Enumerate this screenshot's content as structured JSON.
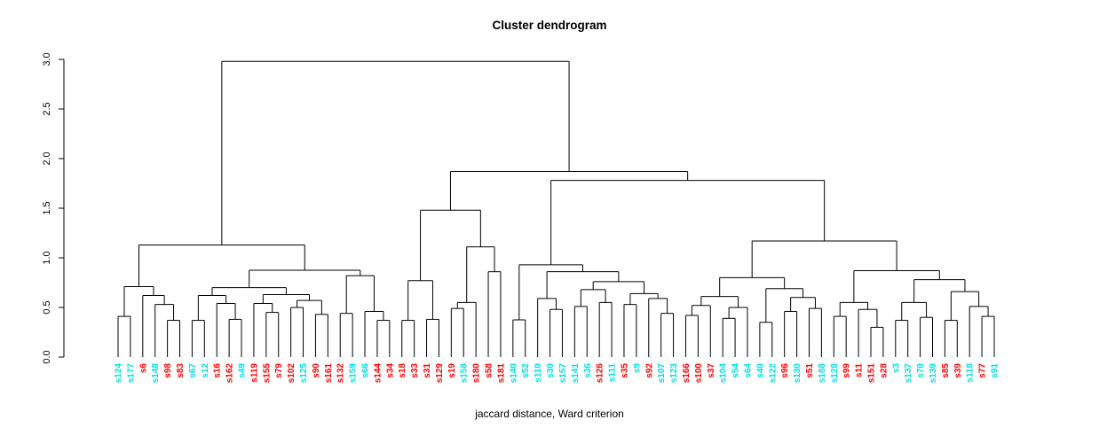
{
  "chart_data": {
    "type": "dendrogram",
    "title": "Cluster dendrogram",
    "xlabel": "jaccard distance, Ward criterion",
    "ylabel": "",
    "ylim": [
      0,
      3
    ],
    "yticks": [
      "0.0",
      "0.5",
      "1.0",
      "1.5",
      "2.0",
      "2.5",
      "3.0"
    ],
    "grid": false,
    "legend": "none",
    "colors": {
      "cyan": "#00DFE4",
      "red": "#FF0000",
      "line": "#000000",
      "axis": "#000000"
    },
    "leaves": [
      [
        "s124",
        "cyan"
      ],
      [
        "s177",
        "cyan"
      ],
      [
        "s6",
        "red"
      ],
      [
        "s148",
        "cyan"
      ],
      [
        "s98",
        "red"
      ],
      [
        "s83",
        "red"
      ],
      [
        "s67",
        "cyan"
      ],
      [
        "s12",
        "cyan"
      ],
      [
        "s16",
        "red"
      ],
      [
        "s162",
        "red"
      ],
      [
        "s49",
        "cyan"
      ],
      [
        "s119",
        "red"
      ],
      [
        "s155",
        "red"
      ],
      [
        "s79",
        "red"
      ],
      [
        "s102",
        "red"
      ],
      [
        "s125",
        "cyan"
      ],
      [
        "s90",
        "red"
      ],
      [
        "s161",
        "red"
      ],
      [
        "s132",
        "red"
      ],
      [
        "s159",
        "cyan"
      ],
      [
        "s66",
        "cyan"
      ],
      [
        "s144",
        "red"
      ],
      [
        "s34",
        "red"
      ],
      [
        "s18",
        "red"
      ],
      [
        "s33",
        "red"
      ],
      [
        "s31",
        "red"
      ],
      [
        "s129",
        "red"
      ],
      [
        "s19",
        "red"
      ],
      [
        "s158",
        "cyan"
      ],
      [
        "s180",
        "red"
      ],
      [
        "s58",
        "red"
      ],
      [
        "s181",
        "red"
      ],
      [
        "s140",
        "cyan"
      ],
      [
        "s52",
        "cyan"
      ],
      [
        "s110",
        "cyan"
      ],
      [
        "s30",
        "cyan"
      ],
      [
        "s157",
        "cyan"
      ],
      [
        "s141",
        "cyan"
      ],
      [
        "s36",
        "cyan"
      ],
      [
        "s126",
        "red"
      ],
      [
        "s111",
        "cyan"
      ],
      [
        "s35",
        "red"
      ],
      [
        "s9",
        "cyan"
      ],
      [
        "s92",
        "red"
      ],
      [
        "s107",
        "cyan"
      ],
      [
        "s123",
        "cyan"
      ],
      [
        "s166",
        "red"
      ],
      [
        "s100",
        "red"
      ],
      [
        "s37",
        "red"
      ],
      [
        "s104",
        "cyan"
      ],
      [
        "s54",
        "cyan"
      ],
      [
        "s64",
        "cyan"
      ],
      [
        "s40",
        "cyan"
      ],
      [
        "s122",
        "cyan"
      ],
      [
        "s96",
        "red"
      ],
      [
        "s130",
        "cyan"
      ],
      [
        "s51",
        "red"
      ],
      [
        "s188",
        "cyan"
      ],
      [
        "s128",
        "cyan"
      ],
      [
        "s99",
        "red"
      ],
      [
        "s11",
        "red"
      ],
      [
        "s151",
        "red"
      ],
      [
        "s28",
        "red"
      ],
      [
        "s3",
        "cyan"
      ],
      [
        "s137",
        "cyan"
      ],
      [
        "s70",
        "cyan"
      ],
      [
        "s139",
        "cyan"
      ],
      [
        "s85",
        "red"
      ],
      [
        "s39",
        "red"
      ],
      [
        "s118",
        "cyan"
      ],
      [
        "s77",
        "red"
      ],
      [
        "s91",
        "cyan"
      ]
    ],
    "tree": {
      "h": 2.98,
      "c": [
        {
          "h": 1.13,
          "c": [
            {
              "h": 0.71,
              "c": [
                {
                  "h": 0.41,
                  "c": [
                    0,
                    1
                  ]
                },
                {
                  "h": 0.62,
                  "c": [
                    2,
                    {
                      "h": 0.53,
                      "c": [
                        3,
                        {
                          "h": 0.37,
                          "c": [
                            4,
                            5
                          ]
                        }
                      ]
                    }
                  ]
                }
              ]
            },
            {
              "h": 0.875,
              "c": [
                {
                  "h": 0.7,
                  "c": [
                    {
                      "h": 0.62,
                      "c": [
                        {
                          "h": 0.37,
                          "c": [
                            6,
                            7
                          ]
                        },
                        {
                          "h": 0.54,
                          "c": [
                            8,
                            {
                              "h": 0.38,
                              "c": [
                                9,
                                10
                              ]
                            }
                          ]
                        }
                      ]
                    },
                    {
                      "h": 0.63,
                      "c": [
                        {
                          "h": 0.54,
                          "c": [
                            11,
                            {
                              "h": 0.45,
                              "c": [
                                12,
                                13
                              ]
                            }
                          ]
                        },
                        {
                          "h": 0.57,
                          "c": [
                            {
                              "h": 0.5,
                              "c": [
                                14,
                                15
                              ]
                            },
                            {
                              "h": 0.43,
                              "c": [
                                16,
                                17
                              ]
                            }
                          ]
                        }
                      ]
                    }
                  ]
                },
                {
                  "h": 0.82,
                  "c": [
                    {
                      "h": 0.44,
                      "c": [
                        18,
                        19
                      ]
                    },
                    {
                      "h": 0.46,
                      "c": [
                        20,
                        {
                          "h": 0.37,
                          "c": [
                            21,
                            22
                          ]
                        }
                      ]
                    }
                  ]
                }
              ]
            }
          ]
        },
        {
          "h": 1.87,
          "c": [
            {
              "h": 1.48,
              "c": [
                {
                  "h": 0.77,
                  "c": [
                    {
                      "h": 0.37,
                      "c": [
                        23,
                        24
                      ]
                    },
                    {
                      "h": 0.38,
                      "c": [
                        25,
                        26
                      ]
                    }
                  ]
                },
                {
                  "h": 1.11,
                  "c": [
                    {
                      "h": 0.55,
                      "c": [
                        {
                          "h": 0.49,
                          "c": [
                            27,
                            28
                          ]
                        },
                        29
                      ]
                    },
                    {
                      "h": 0.86,
                      "c": [
                        30,
                        31
                      ]
                    }
                  ]
                }
              ]
            },
            {
              "h": 1.78,
              "c": [
                {
                  "h": 0.93,
                  "c": [
                    {
                      "h": 0.375,
                      "c": [
                        32,
                        33
                      ]
                    },
                    {
                      "h": 0.86,
                      "c": [
                        {
                          "h": 0.59,
                          "c": [
                            34,
                            {
                              "h": 0.48,
                              "c": [
                                35,
                                36
                              ]
                            }
                          ]
                        },
                        {
                          "h": 0.76,
                          "c": [
                            {
                              "h": 0.68,
                              "c": [
                                {
                                  "h": 0.51,
                                  "c": [
                                    37,
                                    38
                                  ]
                                },
                                {
                                  "h": 0.55,
                                  "c": [
                                    39,
                                    40
                                  ]
                                }
                              ]
                            },
                            {
                              "h": 0.64,
                              "c": [
                                {
                                  "h": 0.53,
                                  "c": [
                                    41,
                                    42
                                  ]
                                },
                                {
                                  "h": 0.59,
                                  "c": [
                                    43,
                                    {
                                      "h": 0.44,
                                      "c": [
                                        44,
                                        45
                                      ]
                                    }
                                  ]
                                }
                              ]
                            }
                          ]
                        }
                      ]
                    }
                  ]
                },
                {
                  "h": 1.17,
                  "c": [
                    {
                      "h": 0.8,
                      "c": [
                        {
                          "h": 0.61,
                          "c": [
                            {
                              "h": 0.52,
                              "c": [
                                {
                                  "h": 0.42,
                                  "c": [
                                    46,
                                    47
                                  ]
                                },
                                48
                              ]
                            },
                            {
                              "h": 0.5,
                              "c": [
                                {
                                  "h": 0.39,
                                  "c": [
                                    49,
                                    50
                                  ]
                                },
                                51
                              ]
                            }
                          ]
                        },
                        {
                          "h": 0.69,
                          "c": [
                            {
                              "h": 0.35,
                              "c": [
                                52,
                                53
                              ]
                            },
                            {
                              "h": 0.6,
                              "c": [
                                {
                                  "h": 0.46,
                                  "c": [
                                    54,
                                    55
                                  ]
                                },
                                {
                                  "h": 0.49,
                                  "c": [
                                    56,
                                    57
                                  ]
                                }
                              ]
                            }
                          ]
                        }
                      ]
                    },
                    {
                      "h": 0.87,
                      "c": [
                        {
                          "h": 0.55,
                          "c": [
                            {
                              "h": 0.41,
                              "c": [
                                58,
                                59
                              ]
                            },
                            {
                              "h": 0.48,
                              "c": [
                                60,
                                {
                                  "h": 0.3,
                                  "c": [
                                    61,
                                    62
                                  ]
                                }
                              ]
                            }
                          ]
                        },
                        {
                          "h": 0.78,
                          "c": [
                            {
                              "h": 0.55,
                              "c": [
                                {
                                  "h": 0.37,
                                  "c": [
                                    63,
                                    64
                                  ]
                                },
                                {
                                  "h": 0.4,
                                  "c": [
                                    65,
                                    66
                                  ]
                                }
                              ]
                            },
                            {
                              "h": 0.66,
                              "c": [
                                {
                                  "h": 0.37,
                                  "c": [
                                    67,
                                    68
                                  ]
                                },
                                {
                                  "h": 0.51,
                                  "c": [
                                    69,
                                    {
                                      "h": 0.41,
                                      "c": [
                                        70,
                                        71
                                      ]
                                    }
                                  ]
                                }
                              ]
                            }
                          ]
                        }
                      ]
                    }
                  ]
                }
              ]
            }
          ]
        }
      ]
    }
  }
}
